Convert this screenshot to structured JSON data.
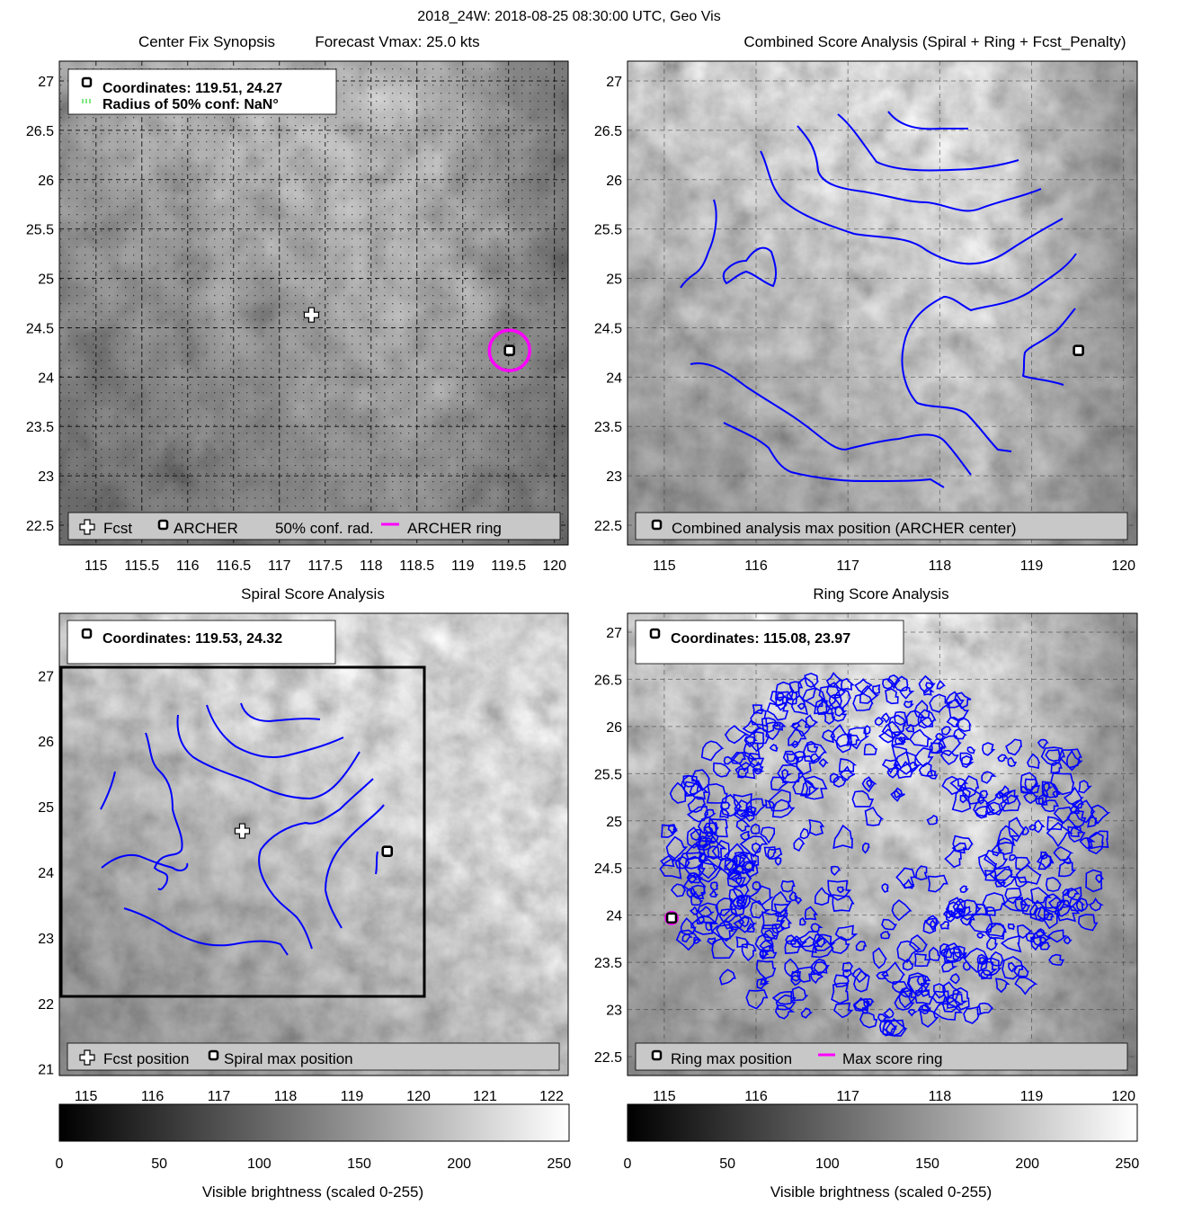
{
  "figure": {
    "suptitle": "2018_24W: 2018-08-25 08:30:00 UTC, Geo Vis"
  },
  "colors": {
    "contour": "#0000ff",
    "ring": "#ff00ff",
    "forecast_marker": "#ffffff",
    "archer_marker": "#000000",
    "conf_radius": "#00cc00"
  },
  "panels": {
    "synopsis": {
      "title_left": "Center Fix Synopsis",
      "title_right": "Forecast Vmax: 25.0 kts",
      "info_line1": "Coordinates: 119.51, 24.27",
      "info_line2": "Radius of 50% conf: NaN°",
      "legend": {
        "fcst": "Fcst",
        "archer": "ARCHER",
        "conf": "50% conf. rad.",
        "ring": "ARCHER ring"
      }
    },
    "combined": {
      "title": "Combined Score Analysis (Spiral + Ring + Fcst_Penalty)",
      "legend": {
        "max": "Combined analysis max position (ARCHER center)"
      }
    },
    "spiral": {
      "title": "Spiral Score Analysis",
      "info_line1": "Coordinates: 119.53, 24.32",
      "legend": {
        "fcst": "Fcst position",
        "max": "Spiral max position"
      }
    },
    "ring": {
      "title": "Ring Score Analysis",
      "info_line1": "Coordinates: 115.08, 23.97",
      "legend": {
        "max": "Ring max position",
        "ring": "Max score ring"
      }
    }
  },
  "colorbars": {
    "label": "Visible brightness (scaled 0-255)",
    "ticks": [
      "0",
      "50",
      "100",
      "150",
      "200",
      "250"
    ],
    "range": [
      0,
      255
    ]
  },
  "chart_data": [
    {
      "type": "heatmap",
      "title": "Center Fix Synopsis",
      "xlim": [
        114.6,
        120.15
      ],
      "ylim": [
        22.3,
        27.2
      ],
      "x_ticks": [
        "115",
        "115.5",
        "116",
        "116.5",
        "117",
        "117.5",
        "118",
        "118.5",
        "119",
        "119.5",
        "120"
      ],
      "y_ticks": [
        "22.5",
        "23",
        "23.5",
        "24",
        "24.5",
        "25",
        "25.5",
        "26",
        "26.5",
        "27"
      ],
      "grid": true,
      "points": {
        "forecast": [
          117.35,
          24.63
        ],
        "archer": [
          119.51,
          24.27
        ]
      },
      "archer_ring_radius_deg": 0.22
    },
    {
      "type": "heatmap",
      "title": "Combined Score Analysis (Spiral + Ring + Fcst_Penalty)",
      "xlim": [
        114.6,
        120.15
      ],
      "ylim": [
        22.3,
        27.2
      ],
      "x_ticks": [
        "115",
        "116",
        "117",
        "118",
        "119",
        "120"
      ],
      "y_ticks": [
        "22.5",
        "23",
        "23.5",
        "24",
        "24.5",
        "25",
        "25.5",
        "26",
        "26.5",
        "27"
      ],
      "grid": true,
      "points": {
        "max": [
          119.51,
          24.27
        ]
      }
    },
    {
      "type": "heatmap",
      "title": "Spiral Score Analysis",
      "xlim": [
        114.6,
        122.25
      ],
      "ylim": [
        20.9,
        27.95
      ],
      "x_ticks": [
        "115",
        "116",
        "117",
        "118",
        "119",
        "120",
        "121",
        "122"
      ],
      "y_ticks": [
        "21",
        "22",
        "23",
        "24",
        "25",
        "26",
        "27"
      ],
      "grid": false,
      "points": {
        "forecast": [
          117.35,
          24.63
        ],
        "max": [
          119.53,
          24.32
        ]
      },
      "box": {
        "lon": [
          114.6,
          120.1
        ],
        "lat": [
          22.15,
          27.15
        ]
      }
    },
    {
      "type": "heatmap",
      "title": "Ring Score Analysis",
      "xlim": [
        114.6,
        120.15
      ],
      "ylim": [
        22.3,
        27.2
      ],
      "x_ticks": [
        "115",
        "116",
        "117",
        "118",
        "119",
        "120"
      ],
      "y_ticks": [
        "22.5",
        "23",
        "23.5",
        "24",
        "24.5",
        "25",
        "25.5",
        "26",
        "26.5",
        "27"
      ],
      "grid": true,
      "points": {
        "max": [
          115.08,
          23.97
        ]
      }
    }
  ]
}
